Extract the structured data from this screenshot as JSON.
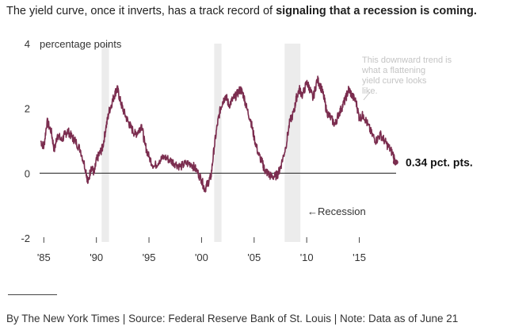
{
  "headline": {
    "lead": "The yield curve, once it inverts, has a track record of ",
    "emphasis": "signaling that a recession is coming."
  },
  "footer": {
    "byline": "By The New York Times | Source: Federal Reserve Bank of St. Louis | Note: Data as of June 21"
  },
  "colors": {
    "line": "#7b2d4f",
    "recession_band": "#ececec",
    "zero_line": "#333333"
  },
  "chart_data": {
    "type": "line",
    "title": "The yield curve, once it inverts, has a track record of signaling that a recession is coming.",
    "ylabel": "percentage points",
    "ylim": [
      -2,
      4
    ],
    "xlim": [
      1984.6,
      2018.5
    ],
    "y_ticks": [
      {
        "value": 4,
        "label": "4"
      },
      {
        "value": 2,
        "label": "2"
      },
      {
        "value": 0,
        "label": "0"
      },
      {
        "value": -2,
        "label": "-2"
      }
    ],
    "x_ticks": [
      {
        "value": 1985,
        "label": "'85"
      },
      {
        "value": 1990,
        "label": "'90"
      },
      {
        "value": 1995,
        "label": "'95"
      },
      {
        "value": 2000,
        "label": "'00"
      },
      {
        "value": 2005,
        "label": "'05"
      },
      {
        "value": 2010,
        "label": "'10"
      },
      {
        "value": 2015,
        "label": "'15"
      }
    ],
    "recessions": [
      {
        "start": 1990.5,
        "end": 1991.2
      },
      {
        "start": 2001.2,
        "end": 2001.9
      },
      {
        "start": 2007.9,
        "end": 2009.4
      }
    ],
    "recession_label": "←Recession",
    "annotation": "This downward trend is what a flattening yield curve looks like.",
    "end_label": "0.34 pct. pts.",
    "end_value": 0.34,
    "series": [
      {
        "x": [
          1984.7,
          1985.0,
          1985.3,
          1985.7,
          1986.0,
          1986.3,
          1986.7,
          1987.0,
          1987.3,
          1987.7,
          1988.0,
          1988.5,
          1989.0,
          1989.2,
          1989.5,
          1989.8,
          1990.0,
          1990.3,
          1990.6,
          1990.9,
          1991.2,
          1991.5,
          1991.8,
          1992.0,
          1992.3,
          1992.6,
          1993.0,
          1993.3,
          1993.7,
          1994.0,
          1994.3,
          1994.6,
          1995.0,
          1995.5,
          1996.0,
          1996.5,
          1997.0,
          1997.5,
          1998.0,
          1998.5,
          1999.0,
          1999.5,
          2000.0,
          2000.3,
          2000.6,
          2000.9,
          2001.2,
          2001.5,
          2001.8,
          2002.0,
          2002.3,
          2002.6,
          2003.0,
          2003.3,
          2003.7,
          2004.0,
          2004.3,
          2004.7,
          2005.0,
          2005.4,
          2005.8,
          2006.0,
          2006.3,
          2006.6,
          2007.0,
          2007.3,
          2007.6,
          2008.0,
          2008.4,
          2008.8,
          2009.0,
          2009.3,
          2009.6,
          2010.0,
          2010.3,
          2010.6,
          2011.0,
          2011.3,
          2011.6,
          2011.9,
          2012.3,
          2012.7,
          2013.0,
          2013.3,
          2013.7,
          2014.0,
          2014.3,
          2014.7,
          2015.0,
          2015.4,
          2015.8,
          2016.2,
          2016.6,
          2017.0,
          2017.4,
          2017.8,
          2018.2,
          2018.45
        ],
        "y": [
          1.0,
          0.8,
          1.6,
          1.3,
          0.7,
          1.2,
          1.0,
          1.2,
          1.3,
          1.1,
          1.0,
          0.7,
          0.1,
          -0.3,
          0.2,
          0.0,
          0.4,
          0.6,
          0.8,
          1.4,
          1.9,
          2.2,
          2.5,
          2.6,
          2.2,
          1.9,
          1.6,
          1.4,
          1.2,
          1.3,
          1.5,
          0.9,
          0.5,
          0.2,
          0.4,
          0.5,
          0.4,
          0.3,
          0.2,
          0.3,
          0.3,
          0.1,
          -0.2,
          -0.5,
          -0.3,
          -0.1,
          0.8,
          1.5,
          2.0,
          2.2,
          2.4,
          2.1,
          2.3,
          2.4,
          2.6,
          2.4,
          2.0,
          1.6,
          1.1,
          0.6,
          0.3,
          0.1,
          0.0,
          -0.1,
          -0.1,
          0.0,
          0.3,
          0.8,
          1.6,
          1.9,
          2.3,
          2.6,
          2.4,
          2.8,
          2.6,
          2.3,
          2.9,
          2.7,
          2.4,
          1.9,
          1.7,
          1.5,
          1.8,
          2.0,
          2.3,
          2.6,
          2.4,
          2.2,
          1.7,
          1.8,
          1.5,
          1.2,
          1.0,
          1.2,
          1.0,
          0.8,
          0.6,
          0.34
        ]
      }
    ]
  }
}
